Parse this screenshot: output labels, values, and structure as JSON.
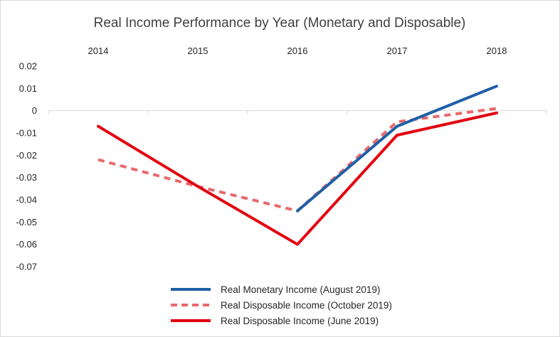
{
  "chart_data": {
    "type": "line",
    "title": "Real Income Performance by Year (Monetary and Disposable)",
    "xlabel": "",
    "ylabel": "",
    "categories": [
      "2014",
      "2015",
      "2016",
      "2017",
      "2018"
    ],
    "ylim": [
      -0.07,
      0.02
    ],
    "y_ticks": [
      "0.02",
      "0.01",
      "0",
      "-0.01",
      "-0.02",
      "-0.03",
      "-0.04",
      "-0.05",
      "-0.06",
      "-0.07"
    ],
    "x_axis_position": "top",
    "grid": false,
    "legend_position": "bottom",
    "series": [
      {
        "name": "Real Monetary Income (August 2019)",
        "color": "#1f5fa6",
        "dash": "solid",
        "values": [
          null,
          null,
          -0.045,
          -0.007,
          0.011
        ]
      },
      {
        "name": "Real Disposable Income (October 2019)",
        "color": "#e8686c",
        "dash": "dashed",
        "values": [
          -0.022,
          -0.034,
          -0.045,
          -0.005,
          0.001
        ]
      },
      {
        "name": "Real Disposable Income (June 2019)",
        "color": "#e3000f",
        "dash": "solid",
        "values": [
          -0.007,
          -0.034,
          -0.06,
          -0.011,
          -0.001
        ]
      }
    ]
  }
}
